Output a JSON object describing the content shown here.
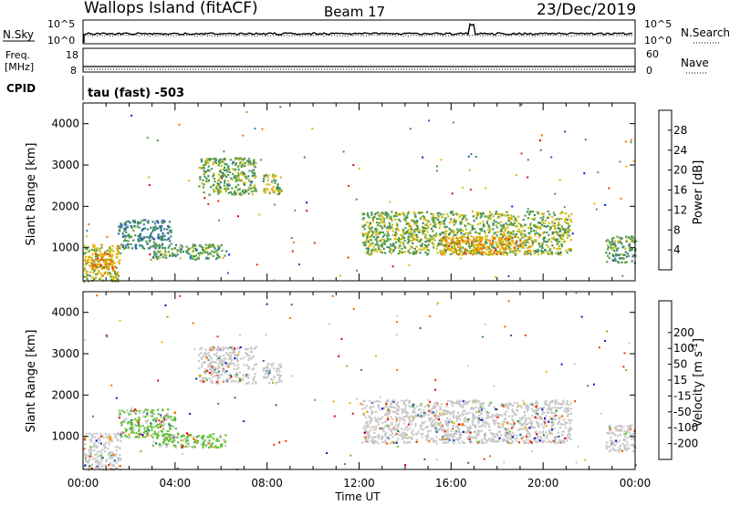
{
  "header": {
    "site": "Wallops Island (fitACF)",
    "beam": "Beam 17",
    "date": "23/Dec/2019"
  },
  "aux_panels": {
    "nsky_label": "N.Sky",
    "nsearch_label": "N.Search",
    "nsky_ticks": [
      "10^5",
      "10^0"
    ],
    "nsearch_ticks": [
      "10^5",
      "10^0"
    ],
    "freq_label_1": "Freq.",
    "freq_label_2": "[MHz]",
    "freq_ticks": [
      "18",
      "8"
    ],
    "nave_label": "Nave",
    "nave_ticks": [
      "60",
      "0"
    ],
    "cpid_label": "CPID",
    "cpid_value": "tau (fast) -503"
  },
  "colors": {
    "power": [
      "#1010e0",
      "#2850b0",
      "#3c7a9a",
      "#3f8f5a",
      "#5aa040",
      "#c8c020",
      "#f0b000",
      "#f07000",
      "#e03000",
      "#d00000"
    ],
    "velocity": [
      "#e00000",
      "#f03000",
      "#f07000",
      "#f0b000",
      "#c8c8c8",
      "#c8c8c8",
      "#60c030",
      "#309050",
      "#2060a0",
      "#1010c0"
    ],
    "noise": "#000000"
  },
  "chart_data": [
    {
      "type": "heatmap",
      "name": "power",
      "xlabel": "",
      "ylabel": "Slant Range [km]",
      "xlim": [
        0,
        24
      ],
      "ylim": [
        200,
        4500
      ],
      "y_ticks": [
        1000,
        2000,
        3000,
        4000
      ],
      "colorbar": {
        "label": "Power [dB]",
        "range": [
          0,
          32
        ],
        "ticks": [
          4,
          8,
          12,
          16,
          20,
          24,
          28
        ]
      },
      "regions": [
        {
          "t": [
            0.0,
            1.6
          ],
          "r": [
            200,
            1100
          ],
          "v": 18
        },
        {
          "t": [
            0.3,
            1.3
          ],
          "r": [
            400,
            900
          ],
          "v": 22
        },
        {
          "t": [
            1.5,
            3.8
          ],
          "r": [
            1000,
            1700
          ],
          "v": 10
        },
        {
          "t": [
            3.0,
            6.2
          ],
          "r": [
            750,
            1100
          ],
          "v": 13
        },
        {
          "t": [
            5.0,
            7.5
          ],
          "r": [
            2300,
            3200
          ],
          "v": 14
        },
        {
          "t": [
            7.8,
            8.6
          ],
          "r": [
            2300,
            2800
          ],
          "v": 16
        },
        {
          "t": [
            12.1,
            21.2
          ],
          "r": [
            850,
            1900
          ],
          "v": 15
        },
        {
          "t": [
            15.5,
            19.5
          ],
          "r": [
            850,
            1300
          ],
          "v": 21
        },
        {
          "t": [
            22.7,
            24.0
          ],
          "r": [
            650,
            1300
          ],
          "v": 12
        }
      ]
    },
    {
      "type": "heatmap",
      "name": "velocity",
      "xlabel": "Time UT",
      "ylabel": "Slant Range [km]",
      "xlim": [
        0,
        24
      ],
      "ylim": [
        200,
        4500
      ],
      "x_ticks": [
        "00:00",
        "04:00",
        "08:00",
        "12:00",
        "16:00",
        "20:00",
        "00:00"
      ],
      "y_ticks": [
        1000,
        2000,
        3000,
        4000
      ],
      "colorbar": {
        "label": "Velocity [m s^-1]",
        "ticks": [
          -200,
          -100,
          -50,
          -15,
          15,
          50,
          100,
          200
        ]
      },
      "regions": [
        {
          "t": [
            0.0,
            1.6
          ],
          "r": [
            200,
            1100
          ],
          "v": 0
        },
        {
          "t": [
            1.5,
            4.0
          ],
          "r": [
            1000,
            1700
          ],
          "v": 30
        },
        {
          "t": [
            3.0,
            6.2
          ],
          "r": [
            750,
            1100
          ],
          "v": 30
        },
        {
          "t": [
            5.0,
            7.5
          ],
          "r": [
            2300,
            3200
          ],
          "v": 0
        },
        {
          "t": [
            7.8,
            8.6
          ],
          "r": [
            2300,
            2800
          ],
          "v": 0
        },
        {
          "t": [
            12.1,
            21.2
          ],
          "r": [
            850,
            1900
          ],
          "v": 0
        },
        {
          "t": [
            22.7,
            24.0
          ],
          "r": [
            650,
            1300
          ],
          "v": 0
        }
      ]
    }
  ]
}
